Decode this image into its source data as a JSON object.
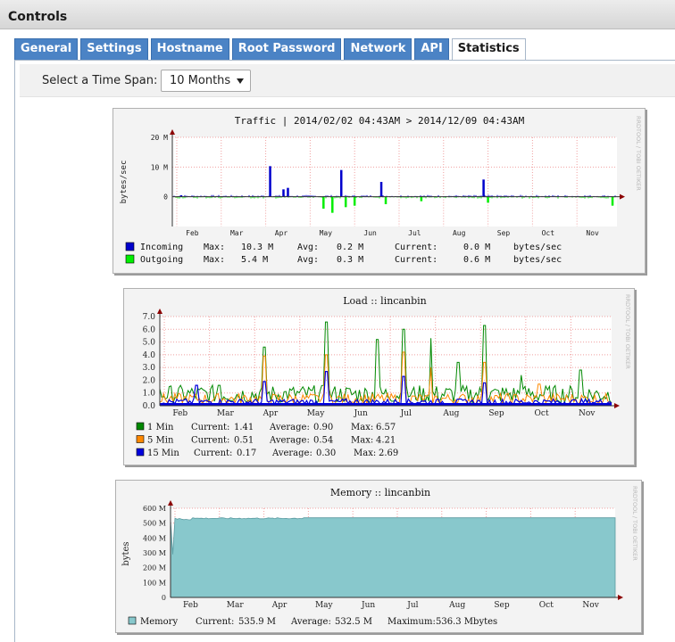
{
  "window": {
    "title": "Controls"
  },
  "tabs": [
    {
      "label": "General"
    },
    {
      "label": "Settings"
    },
    {
      "label": "Hostname"
    },
    {
      "label": "Root Password"
    },
    {
      "label": "Network"
    },
    {
      "label": "API"
    },
    {
      "label": "Statistics"
    }
  ],
  "active_tab": "Statistics",
  "time_span": {
    "label": "Select a Time Span:",
    "value": "10 Months"
  },
  "watermark": "RRDTOOL / TOBI OETIKER",
  "chart_data": [
    {
      "type": "area",
      "title": "Traffic  |  2014/02/02 04:43AM > 2014/12/09 04:43AM",
      "ylabel": "bytes/sec",
      "ylim": [
        -10,
        20
      ],
      "yticks": [
        "20 M",
        "10 M",
        "0"
      ],
      "categories": [
        "Feb",
        "Mar",
        "Apr",
        "May",
        "Jun",
        "Jul",
        "Aug",
        "Sep",
        "Oct",
        "Nov"
      ],
      "series": [
        {
          "name": "Incoming",
          "color": "#0000cc",
          "max": "10.3 M",
          "avg": "0.2 M",
          "current": "0.0 M",
          "unit": "bytes/sec",
          "spikes": [
            [
              0.02,
              0.5
            ],
            [
              0.22,
              10.3
            ],
            [
              0.25,
              2.5
            ],
            [
              0.26,
              3.0
            ],
            [
              0.38,
              9.0
            ],
            [
              0.47,
              5.0
            ],
            [
              0.7,
              5.8
            ]
          ]
        },
        {
          "name": "Outgoing",
          "color": "#00ee00",
          "max": "5.4 M",
          "avg": "0.3 M",
          "current": "0.6 M",
          "unit": "bytes/sec",
          "spikes": [
            [
              0.34,
              -4.0
            ],
            [
              0.36,
              -5.4
            ],
            [
              0.39,
              -3.5
            ],
            [
              0.41,
              -3.0
            ],
            [
              0.48,
              -2.5
            ],
            [
              0.56,
              -1.5
            ],
            [
              0.71,
              -2.0
            ],
            [
              0.99,
              -3.0
            ]
          ]
        }
      ],
      "grid": true
    },
    {
      "type": "line",
      "title": "Load :: lincanbin",
      "ylim": [
        0,
        7
      ],
      "yticks": [
        "7.0",
        "6.0",
        "5.0",
        "4.0",
        "3.0",
        "2.0",
        "1.0",
        "0.0"
      ],
      "categories": [
        "Feb",
        "Mar",
        "Apr",
        "May",
        "Jun",
        "Jul",
        "Aug",
        "Sep",
        "Oct",
        "Nov"
      ],
      "series": [
        {
          "name": "1 Min",
          "color": "#008800",
          "current": "1.41",
          "average": "0.90",
          "max": "6.57"
        },
        {
          "name": "5 Min",
          "color": "#ff8800",
          "current": "0.51",
          "average": "0.54",
          "max": "4.21"
        },
        {
          "name": "15 Min",
          "color": "#0000dd",
          "current": "0.17",
          "average": "0.30",
          "max": "2.69"
        }
      ],
      "legend_labels": {
        "current": "Current:",
        "average": "Average:",
        "max": "Max:"
      },
      "grid": true
    },
    {
      "type": "area",
      "title": "Memory :: lincanbin",
      "ylabel": "bytes",
      "ylim": [
        0,
        600
      ],
      "yticks": [
        "600 M",
        "500 M",
        "400 M",
        "300 M",
        "200 M",
        "100 M",
        "0"
      ],
      "categories": [
        "Feb",
        "Mar",
        "Apr",
        "May",
        "Jun",
        "Jul",
        "Aug",
        "Sep",
        "Oct",
        "Nov"
      ],
      "series": [
        {
          "name": "Memory",
          "color": "#88c8cc",
          "current": "535.9 M",
          "average": "532.5 M",
          "maximum": "536.3 Mbytes"
        }
      ],
      "legend_labels": {
        "current": "Current:",
        "average": "Average:",
        "maximum": "Maximum:"
      },
      "grid": true
    }
  ],
  "traffic_legend_labels": {
    "max": "Max:",
    "avg": "Avg:",
    "current": "Current:"
  }
}
